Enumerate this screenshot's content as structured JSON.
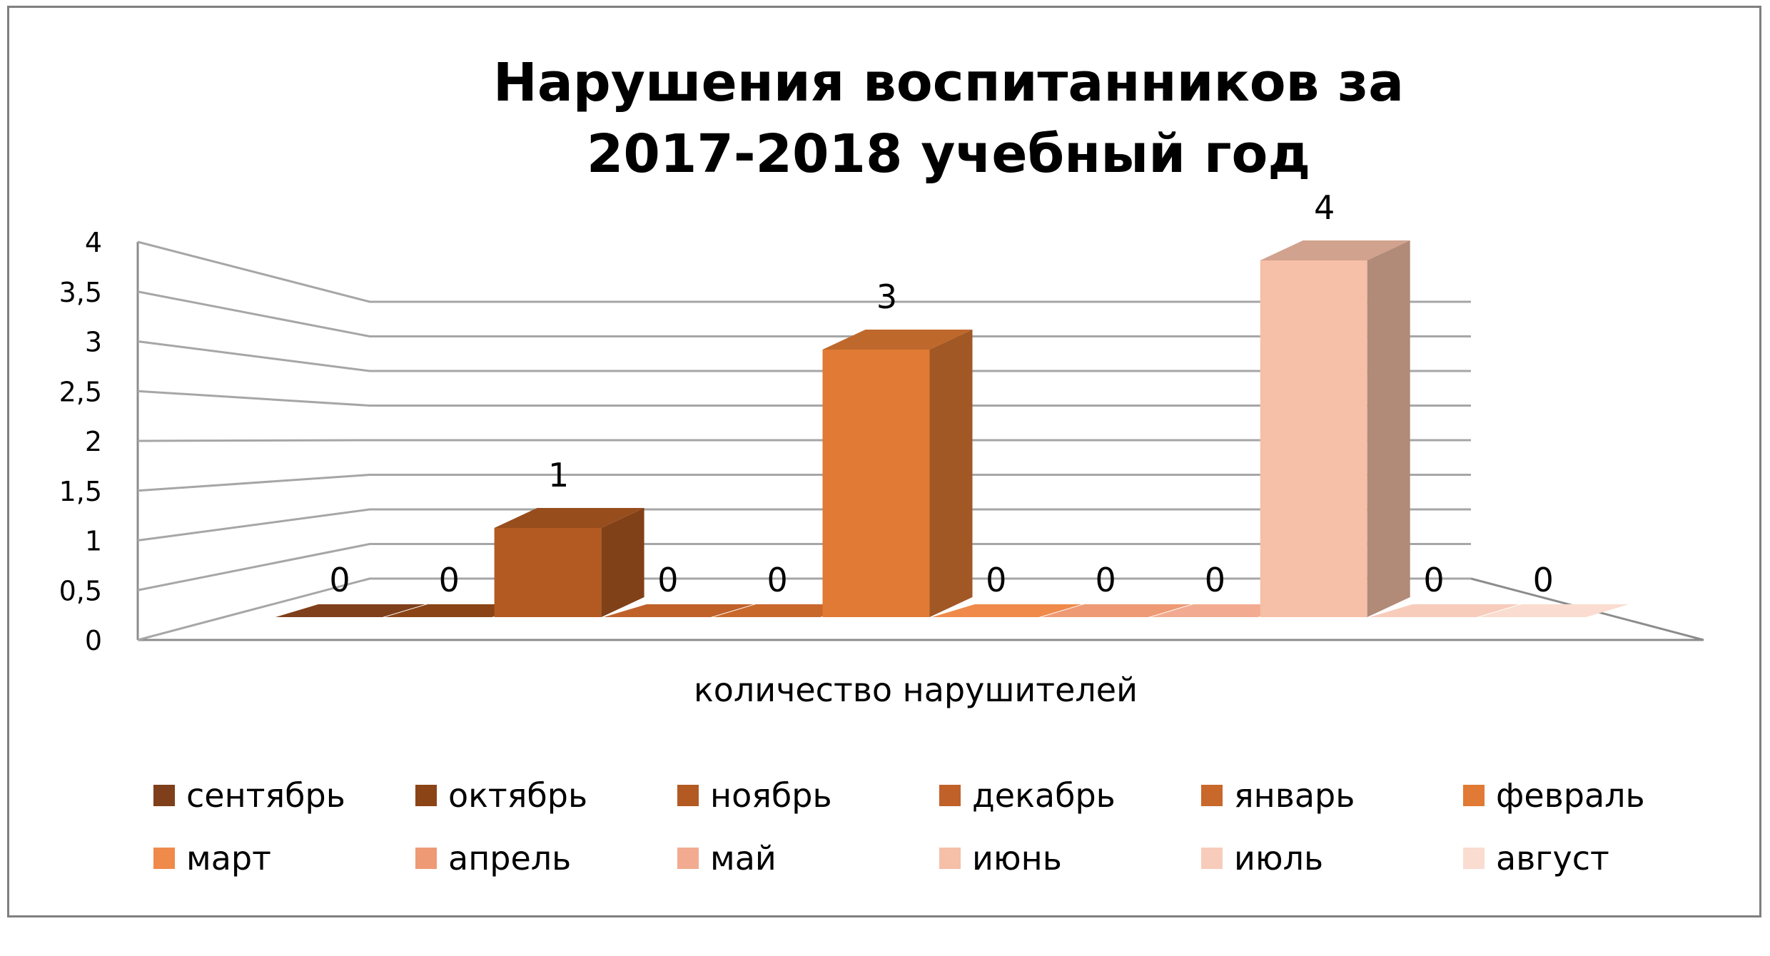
{
  "chart_data": {
    "type": "bar",
    "style": "3d-clustered-column",
    "title": [
      "Нарушения воспитанников за",
      "2017-2018 учебный год"
    ],
    "xlabel": "количество нарушителей",
    "ylabel": "",
    "categories": [
      "количество нарушителей"
    ],
    "ylim": [
      0,
      4
    ],
    "yticks": [
      "0",
      "0,5",
      "1",
      "1,5",
      "2",
      "2,5",
      "3",
      "3,5",
      "4"
    ],
    "grid": true,
    "legend_position": "bottom",
    "series": [
      {
        "name": "сентябрь",
        "values": [
          0
        ],
        "label": "0",
        "color": "#7f3f1a"
      },
      {
        "name": "октябрь",
        "values": [
          0
        ],
        "label": "0",
        "color": "#8a4416"
      },
      {
        "name": "ноябрь",
        "values": [
          1
        ],
        "label": "1",
        "color": "#b35a22"
      },
      {
        "name": "декабрь",
        "values": [
          0
        ],
        "label": "0",
        "color": "#c0612a"
      },
      {
        "name": "январь",
        "values": [
          0
        ],
        "label": "0",
        "color": "#c8682a"
      },
      {
        "name": "февраль",
        "values": [
          3
        ],
        "label": "3",
        "color": "#e07a34"
      },
      {
        "name": "март",
        "values": [
          0
        ],
        "label": "0",
        "color": "#ef8a4a"
      },
      {
        "name": "апрель",
        "values": [
          0
        ],
        "label": "0",
        "color": "#ee9a74"
      },
      {
        "name": "май",
        "values": [
          0
        ],
        "label": "0",
        "color": "#f2ab90"
      },
      {
        "name": "июнь",
        "values": [
          4
        ],
        "label": "4",
        "color": "#f6bfa7"
      },
      {
        "name": "июль",
        "values": [
          0
        ],
        "label": "0",
        "color": "#f8ccbb"
      },
      {
        "name": "август",
        "values": [
          0
        ],
        "label": "0",
        "color": "#fadcd0"
      }
    ]
  }
}
